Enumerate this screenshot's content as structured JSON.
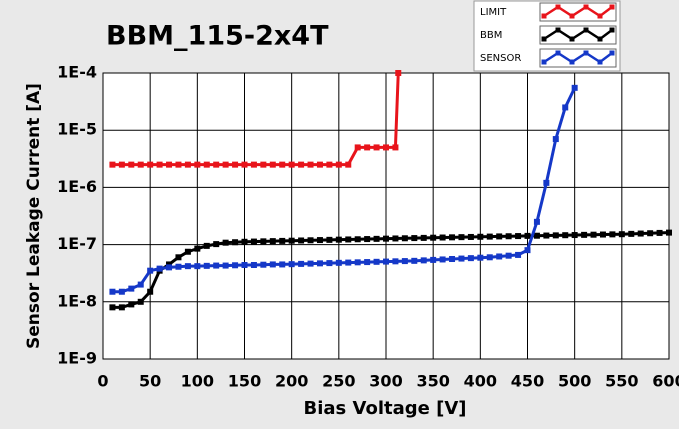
{
  "chart_data": {
    "type": "line",
    "title": "BBM_115-2x4T",
    "x_label": "Bias Voltage [V]",
    "y_label": "Sensor Leakage Current [A]",
    "log_y": true,
    "grid": true,
    "legend": "top-right",
    "xlim": [
      0,
      600
    ],
    "xticks": [
      0,
      50,
      100,
      150,
      200,
      250,
      300,
      350,
      400,
      450,
      500,
      550,
      600
    ],
    "ylim": [
      1e-09,
      0.0001
    ],
    "yticks": [
      {
        "value": 1e-09,
        "label": "1E-9"
      },
      {
        "value": 1e-08,
        "label": "1E-8"
      },
      {
        "value": 1e-07,
        "label": "1E-7"
      },
      {
        "value": 1e-06,
        "label": "1E-6"
      },
      {
        "value": 1e-05,
        "label": "1E-5"
      },
      {
        "value": 0.0001,
        "label": "1E-4"
      }
    ],
    "series": [
      {
        "name": "LIMIT",
        "color": "#e8141b",
        "x": [
          10,
          20,
          30,
          40,
          50,
          60,
          70,
          80,
          90,
          100,
          110,
          120,
          130,
          140,
          150,
          160,
          170,
          180,
          190,
          200,
          210,
          220,
          230,
          240,
          250,
          260,
          270,
          280,
          290,
          300,
          310,
          313
        ],
        "values": [
          2.5e-06,
          2.5e-06,
          2.5e-06,
          2.5e-06,
          2.5e-06,
          2.5e-06,
          2.5e-06,
          2.5e-06,
          2.5e-06,
          2.5e-06,
          2.5e-06,
          2.5e-06,
          2.5e-06,
          2.5e-06,
          2.5e-06,
          2.5e-06,
          2.5e-06,
          2.5e-06,
          2.5e-06,
          2.5e-06,
          2.5e-06,
          2.5e-06,
          2.5e-06,
          2.5e-06,
          2.5e-06,
          2.5e-06,
          5e-06,
          5e-06,
          5e-06,
          5e-06,
          5e-06,
          0.0001
        ]
      },
      {
        "name": "BBM",
        "color": "#000000",
        "x": [
          10,
          20,
          30,
          40,
          50,
          60,
          70,
          80,
          90,
          100,
          110,
          120,
          130,
          140,
          150,
          160,
          170,
          180,
          190,
          200,
          210,
          220,
          230,
          240,
          250,
          260,
          270,
          280,
          290,
          300,
          310,
          320,
          330,
          340,
          350,
          360,
          370,
          380,
          390,
          400,
          410,
          420,
          430,
          440,
          450,
          460,
          470,
          480,
          490,
          500,
          510,
          520,
          530,
          540,
          550,
          560,
          570,
          580,
          590,
          600
        ],
        "values": [
          8e-09,
          8e-09,
          9e-09,
          1e-08,
          1.5e-08,
          3.5e-08,
          4.5e-08,
          6e-08,
          7.5e-08,
          8.5e-08,
          9.5e-08,
          1.02e-07,
          1.08e-07,
          1.1e-07,
          1.12e-07,
          1.13e-07,
          1.14e-07,
          1.15e-07,
          1.16e-07,
          1.17e-07,
          1.18e-07,
          1.19e-07,
          1.2e-07,
          1.21e-07,
          1.22e-07,
          1.23e-07,
          1.24e-07,
          1.25e-07,
          1.26e-07,
          1.27e-07,
          1.28e-07,
          1.29e-07,
          1.3e-07,
          1.31e-07,
          1.32e-07,
          1.33e-07,
          1.34e-07,
          1.35e-07,
          1.36e-07,
          1.37e-07,
          1.38e-07,
          1.39e-07,
          1.4e-07,
          1.41e-07,
          1.42e-07,
          1.43e-07,
          1.44e-07,
          1.45e-07,
          1.46e-07,
          1.47e-07,
          1.48e-07,
          1.49e-07,
          1.5e-07,
          1.51e-07,
          1.52e-07,
          1.54e-07,
          1.56e-07,
          1.58e-07,
          1.6e-07,
          1.62e-07
        ]
      },
      {
        "name": "SENSOR",
        "color": "#1538c8",
        "x": [
          10,
          20,
          30,
          40,
          50,
          60,
          70,
          80,
          90,
          100,
          110,
          120,
          130,
          140,
          150,
          160,
          170,
          180,
          190,
          200,
          210,
          220,
          230,
          240,
          250,
          260,
          270,
          280,
          290,
          300,
          310,
          320,
          330,
          340,
          350,
          360,
          370,
          380,
          390,
          400,
          410,
          420,
          430,
          440,
          450,
          460,
          470,
          480,
          490,
          500
        ],
        "values": [
          1.5e-08,
          1.5e-08,
          1.7e-08,
          2e-08,
          3.5e-08,
          3.8e-08,
          4e-08,
          4.1e-08,
          4.2e-08,
          4.2e-08,
          4.25e-08,
          4.3e-08,
          4.3e-08,
          4.35e-08,
          4.4e-08,
          4.4e-08,
          4.45e-08,
          4.5e-08,
          4.5e-08,
          4.55e-08,
          4.6e-08,
          4.65e-08,
          4.7e-08,
          4.75e-08,
          4.8e-08,
          4.85e-08,
          4.9e-08,
          4.95e-08,
          5e-08,
          5.05e-08,
          5.1e-08,
          5.15e-08,
          5.2e-08,
          5.3e-08,
          5.4e-08,
          5.5e-08,
          5.6e-08,
          5.7e-08,
          5.8e-08,
          5.9e-08,
          6e-08,
          6.2e-08,
          6.4e-08,
          6.6e-08,
          8e-08,
          2.5e-07,
          1.2e-06,
          7e-06,
          2.5e-05,
          5.5e-05
        ]
      }
    ]
  }
}
